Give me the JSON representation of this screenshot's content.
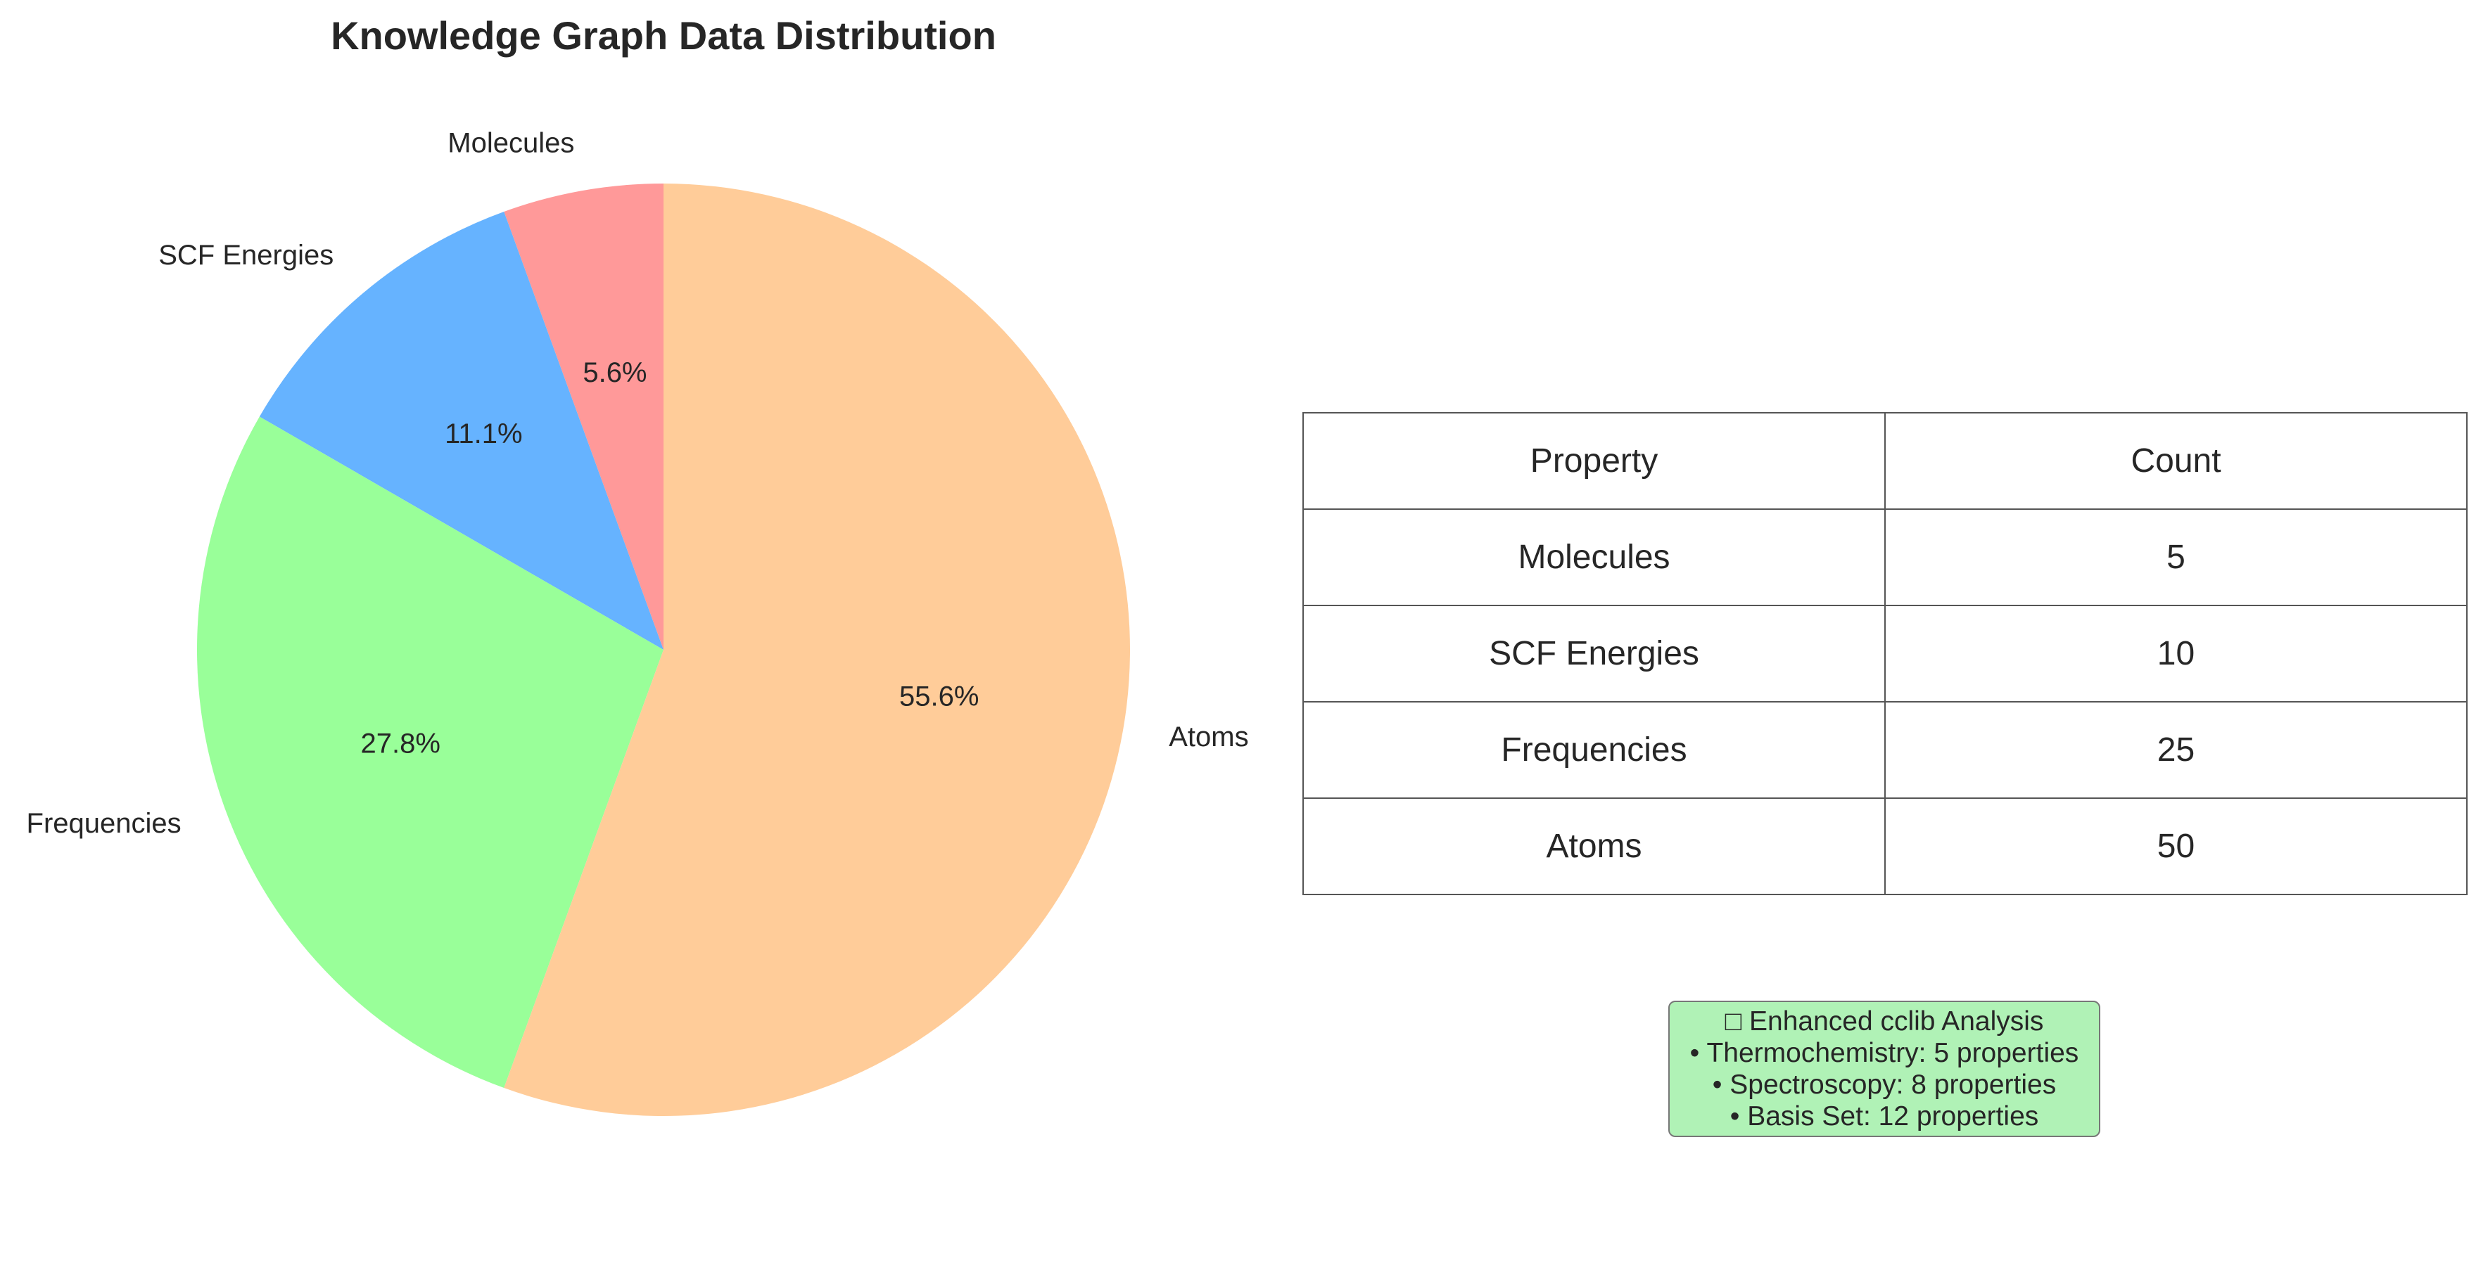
{
  "colors": {
    "text": "#262626",
    "table_border": "#555555",
    "info_box_bg": "#b0f2b6",
    "info_box_border": "#777777"
  },
  "chart_data": {
    "type": "pie",
    "title": "Knowledge Graph Data Distribution",
    "start_angle_deg": 90,
    "direction": "counterclockwise",
    "slices": [
      {
        "label": "Molecules",
        "value": 5,
        "percent": "5.6%",
        "color": "#ff9999"
      },
      {
        "label": "SCF Energies",
        "value": 10,
        "percent": "11.1%",
        "color": "#66b3ff"
      },
      {
        "label": "Frequencies",
        "value": 25,
        "percent": "27.8%",
        "color": "#99ff99"
      },
      {
        "label": "Atoms",
        "value": 50,
        "percent": "55.6%",
        "color": "#ffcc99"
      }
    ]
  },
  "table": {
    "headers": [
      "Property",
      "Count"
    ],
    "rows": [
      [
        "Molecules",
        "5"
      ],
      [
        "SCF Energies",
        "10"
      ],
      [
        "Frequencies",
        "25"
      ],
      [
        "Atoms",
        "50"
      ]
    ]
  },
  "info_box": {
    "lines": [
      "□ Enhanced cclib Analysis",
      "• Thermochemistry: 5 properties",
      "• Spectroscopy: 8 properties",
      "• Basis Set: 12 properties"
    ]
  }
}
